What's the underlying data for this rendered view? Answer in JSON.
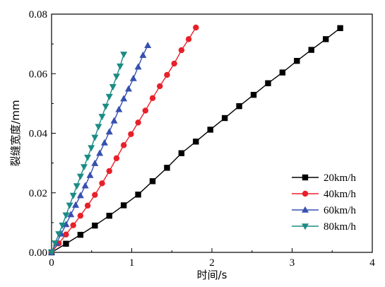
{
  "chart_data": {
    "type": "line",
    "title": "",
    "xlabel": "时间/s",
    "ylabel": "裂缝宽度/mm",
    "xlim": [
      0,
      4
    ],
    "ylim": [
      0,
      0.08
    ],
    "x_ticks": [
      0,
      1,
      2,
      3,
      4
    ],
    "y_ticks": [
      0.0,
      0.02,
      0.04,
      0.06,
      0.08
    ],
    "x_tick_labels": [
      "0",
      "1",
      "2",
      "3",
      "4"
    ],
    "y_tick_labels": [
      "0.00",
      "0.02",
      "0.04",
      "0.06",
      "0.08"
    ],
    "grid": false,
    "legend_position": "bottom-right",
    "series": [
      {
        "name": "20km/h",
        "color": "#000000",
        "marker": "square",
        "x": [
          0,
          0.18,
          0.36,
          0.54,
          0.72,
          0.9,
          1.08,
          1.26,
          1.44,
          1.62,
          1.8,
          1.98,
          2.16,
          2.34,
          2.52,
          2.7,
          2.88,
          3.06,
          3.24,
          3.42,
          3.6
        ],
        "y": [
          0,
          0.0029,
          0.0059,
          0.009,
          0.0123,
          0.0158,
          0.0194,
          0.0239,
          0.0284,
          0.0333,
          0.0372,
          0.0412,
          0.0451,
          0.0491,
          0.0529,
          0.0568,
          0.0604,
          0.0643,
          0.068,
          0.0716,
          0.0753
        ]
      },
      {
        "name": "40km/h",
        "color": "#e8202a",
        "marker": "circle",
        "x": [
          0,
          0.09,
          0.18,
          0.27,
          0.36,
          0.45,
          0.54,
          0.63,
          0.72,
          0.81,
          0.9,
          0.99,
          1.08,
          1.17,
          1.26,
          1.35,
          1.44,
          1.53,
          1.62,
          1.71,
          1.8
        ],
        "y": [
          0,
          0.003,
          0.006,
          0.0091,
          0.0123,
          0.0157,
          0.0193,
          0.0232,
          0.0273,
          0.0316,
          0.036,
          0.0397,
          0.0436,
          0.0476,
          0.0518,
          0.0558,
          0.0596,
          0.0634,
          0.0679,
          0.0716,
          0.0755
        ]
      },
      {
        "name": "60km/h",
        "color": "#3650b0",
        "marker": "triangle-up",
        "x": [
          0,
          0.06,
          0.12,
          0.18,
          0.24,
          0.3,
          0.36,
          0.42,
          0.48,
          0.54,
          0.6,
          0.66,
          0.72,
          0.78,
          0.84,
          0.9,
          0.96,
          1.02,
          1.08,
          1.14,
          1.2
        ],
        "y": [
          0,
          0.0031,
          0.0062,
          0.0094,
          0.0127,
          0.0159,
          0.0191,
          0.0224,
          0.0259,
          0.0299,
          0.0333,
          0.0368,
          0.0405,
          0.0442,
          0.048,
          0.0516,
          0.0549,
          0.0584,
          0.0623,
          0.0662,
          0.0695
        ]
      },
      {
        "name": "80km/h",
        "color": "#1b8c85",
        "marker": "triangle-down",
        "x": [
          0,
          0.045,
          0.09,
          0.135,
          0.18,
          0.225,
          0.27,
          0.315,
          0.36,
          0.405,
          0.45,
          0.495,
          0.54,
          0.585,
          0.63,
          0.675,
          0.72,
          0.765,
          0.81,
          0.855,
          0.9
        ],
        "y": [
          0,
          0.0031,
          0.0062,
          0.0091,
          0.0125,
          0.0158,
          0.0191,
          0.0223,
          0.0255,
          0.0287,
          0.0319,
          0.0351,
          0.0386,
          0.0422,
          0.0456,
          0.049,
          0.0523,
          0.0556,
          0.0591,
          0.0625,
          0.0665
        ]
      }
    ]
  }
}
